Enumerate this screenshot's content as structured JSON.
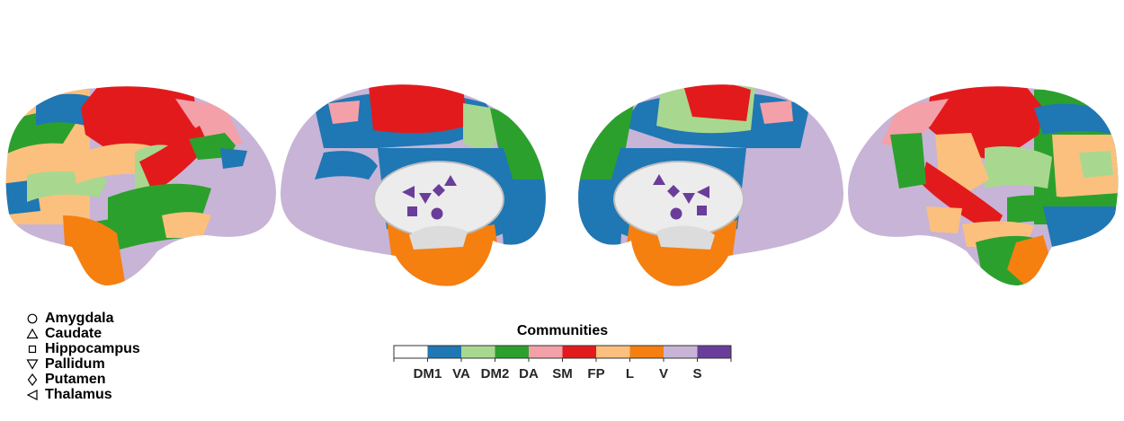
{
  "structures": [
    {
      "name": "Amygdala",
      "symbol": "circle-icon"
    },
    {
      "name": "Caudate",
      "symbol": "triangle-up-icon"
    },
    {
      "name": "Hippocampus",
      "symbol": "square-icon"
    },
    {
      "name": "Pallidum",
      "symbol": "triangle-down-icon"
    },
    {
      "name": "Putamen",
      "symbol": "diamond-icon"
    },
    {
      "name": "Thalamus",
      "symbol": "triangle-left-icon"
    }
  ],
  "colorbar": {
    "title": "Communities",
    "labels": [
      "DM1",
      "VA",
      "DM2",
      "DA",
      "SM",
      "FP",
      "L",
      "V",
      "S"
    ],
    "colors": [
      "#ffffff",
      "#1f77b4",
      "#a8d88f",
      "#2ca02c",
      "#f4a0a8",
      "#e31a1c",
      "#fbc07d",
      "#f57f0f",
      "#c7b4d6",
      "#6a3d9a"
    ]
  },
  "marker_color": "#6a3d9a"
}
